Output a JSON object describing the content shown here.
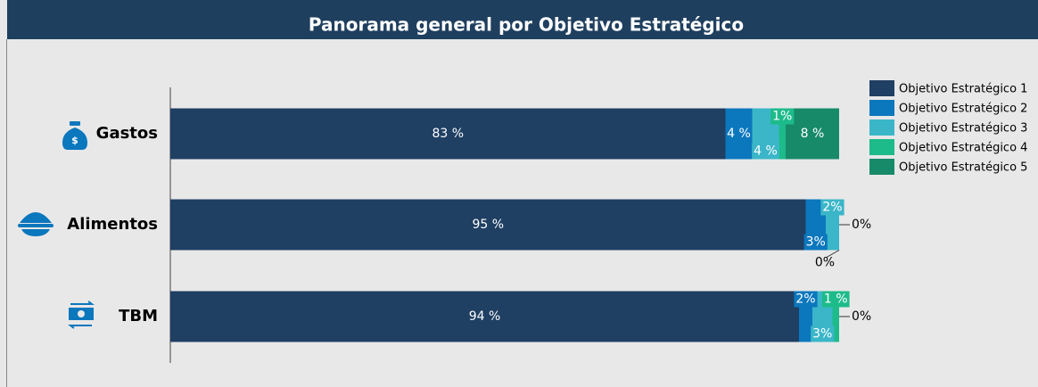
{
  "chart_data": {
    "type": "stacked_barh",
    "title": "Panorama general por Objetivo Estratégico",
    "categories": [
      "Gastos",
      "Alimentos",
      "TBM"
    ],
    "xlim": [
      0,
      100
    ],
    "series": [
      {
        "name": "Objetivo Estratégico 1",
        "color": "#1f3f63",
        "values": [
          83,
          95,
          94
        ],
        "value_labels": [
          "83 %",
          "95 %",
          "94 %"
        ]
      },
      {
        "name": "Objetivo Estratégico 2",
        "color": "#0b77bd",
        "values": [
          4,
          3,
          2
        ],
        "value_labels": [
          "4 %",
          "3%",
          "2%"
        ]
      },
      {
        "name": "Objetivo Estratégico 3",
        "color": "#3bb6c8",
        "values": [
          4,
          2,
          3
        ],
        "value_labels": [
          "4 %",
          "2%",
          "3%"
        ]
      },
      {
        "name": "Objetivo Estratégico 4",
        "color": "#1dbb8a",
        "values": [
          1,
          0,
          1
        ],
        "value_labels": [
          "1%",
          "0%",
          "1 %"
        ]
      },
      {
        "name": "Objetivo Estratégico 5",
        "color": "#178a6a",
        "values": [
          8,
          0,
          0
        ],
        "value_labels": [
          "8 %",
          "0%",
          "0%"
        ]
      }
    ]
  }
}
